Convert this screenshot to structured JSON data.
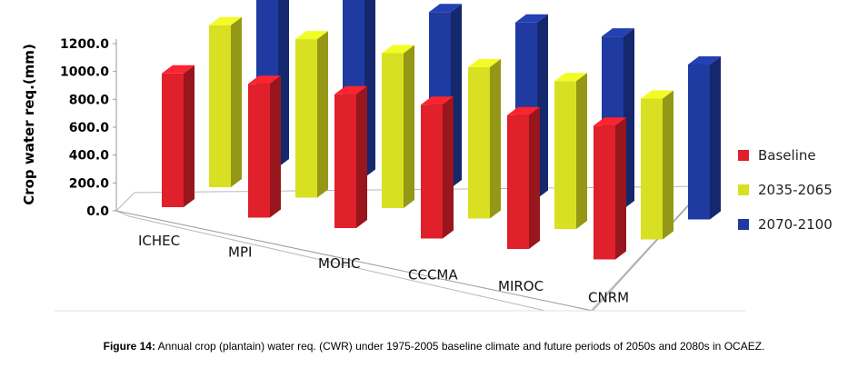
{
  "chart_data": {
    "type": "bar",
    "subtype": "3d-clustered",
    "ylabel": "Crop water req.(mm)",
    "ylim": [
      0,
      1200
    ],
    "yticks": [
      "0.0",
      "200.0",
      "400.0",
      "600.0",
      "800.0",
      "1000.0",
      "1200.0"
    ],
    "categories": [
      "ICHEC",
      "MPI",
      "MOHC",
      "CCCMA",
      "MIROC",
      "CNRM"
    ],
    "series": [
      {
        "name": "Baseline",
        "color": "#e0202a",
        "values": [
          950,
          950,
          950,
          950,
          950,
          950
        ]
      },
      {
        "name": "2035-2065",
        "color": "#d9e021",
        "values": [
          1150,
          1125,
          1100,
          1075,
          1050,
          1000
        ]
      },
      {
        "name": "2070-2100",
        "color": "#1f3aa0",
        "values": [
          1300,
          1275,
          1250,
          1250,
          1225,
          1100
        ]
      }
    ],
    "legend_position": "right"
  },
  "caption": {
    "label": "Figure 14:",
    "text": "Annual crop (plantain) water req. (CWR) under 1975-2005 baseline climate and future periods of 2050s and 2080s in OCAEZ."
  }
}
